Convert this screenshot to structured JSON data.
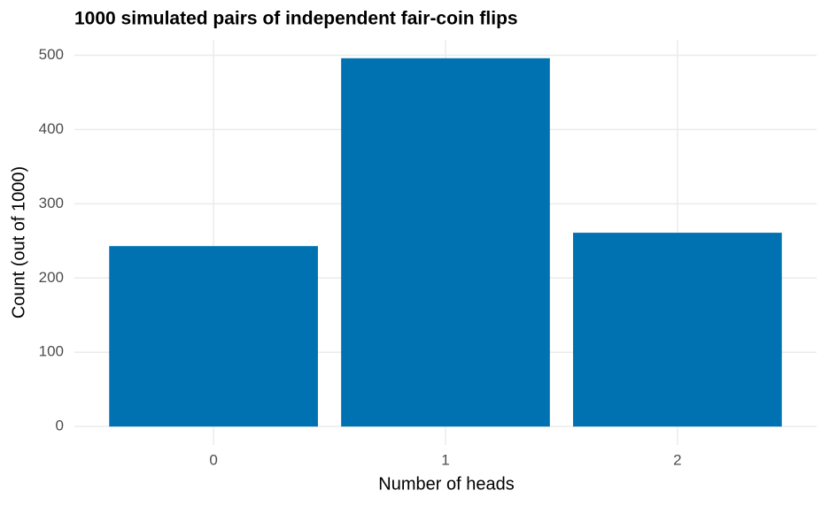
{
  "chart_data": {
    "type": "bar",
    "title": "1000 simulated pairs of independent fair-coin flips",
    "x_label": "Number of heads",
    "y_label": "Count (out of 1000)",
    "categories": [
      "0",
      "1",
      "2"
    ],
    "values": [
      243,
      496,
      261
    ],
    "color": "#0072b2",
    "ylim": [
      -24.8,
      520.8
    ],
    "yticks": [
      0,
      100,
      200,
      300,
      400,
      500
    ],
    "grid": true
  }
}
